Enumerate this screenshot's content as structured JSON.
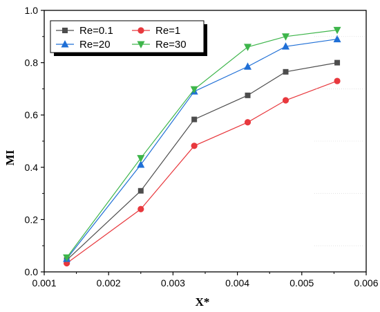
{
  "chart_data": {
    "type": "line",
    "xlabel": "X*",
    "ylabel": "MI",
    "xlim": [
      0.001,
      0.006
    ],
    "ylim": [
      0.0,
      1.0
    ],
    "x_ticks": [
      "0.001",
      "0.002",
      "0.003",
      "0.004",
      "0.005",
      "0.006"
    ],
    "y_ticks": [
      "0.0",
      "0.2",
      "0.4",
      "0.6",
      "0.8",
      "1.0"
    ],
    "grid": false,
    "legend_position": "top-left",
    "x": [
      0.00135,
      0.0025,
      0.00333,
      0.00416,
      0.00475,
      0.00555
    ],
    "series": [
      {
        "name": "Re=0.1",
        "color": "#4d4d4d",
        "marker": "square",
        "values": [
          0.045,
          0.31,
          0.583,
          0.675,
          0.765,
          0.8
        ]
      },
      {
        "name": "Re=1",
        "color": "#e8383d",
        "marker": "circle",
        "values": [
          0.033,
          0.24,
          0.482,
          0.572,
          0.656,
          0.73
        ]
      },
      {
        "name": "Re=20",
        "color": "#1f6fd6",
        "marker": "triangle-up",
        "values": [
          0.05,
          0.41,
          0.69,
          0.785,
          0.862,
          0.89
        ]
      },
      {
        "name": "Re=30",
        "color": "#3db54a",
        "marker": "triangle-down",
        "values": [
          0.055,
          0.435,
          0.698,
          0.86,
          0.9,
          0.925
        ]
      }
    ]
  }
}
